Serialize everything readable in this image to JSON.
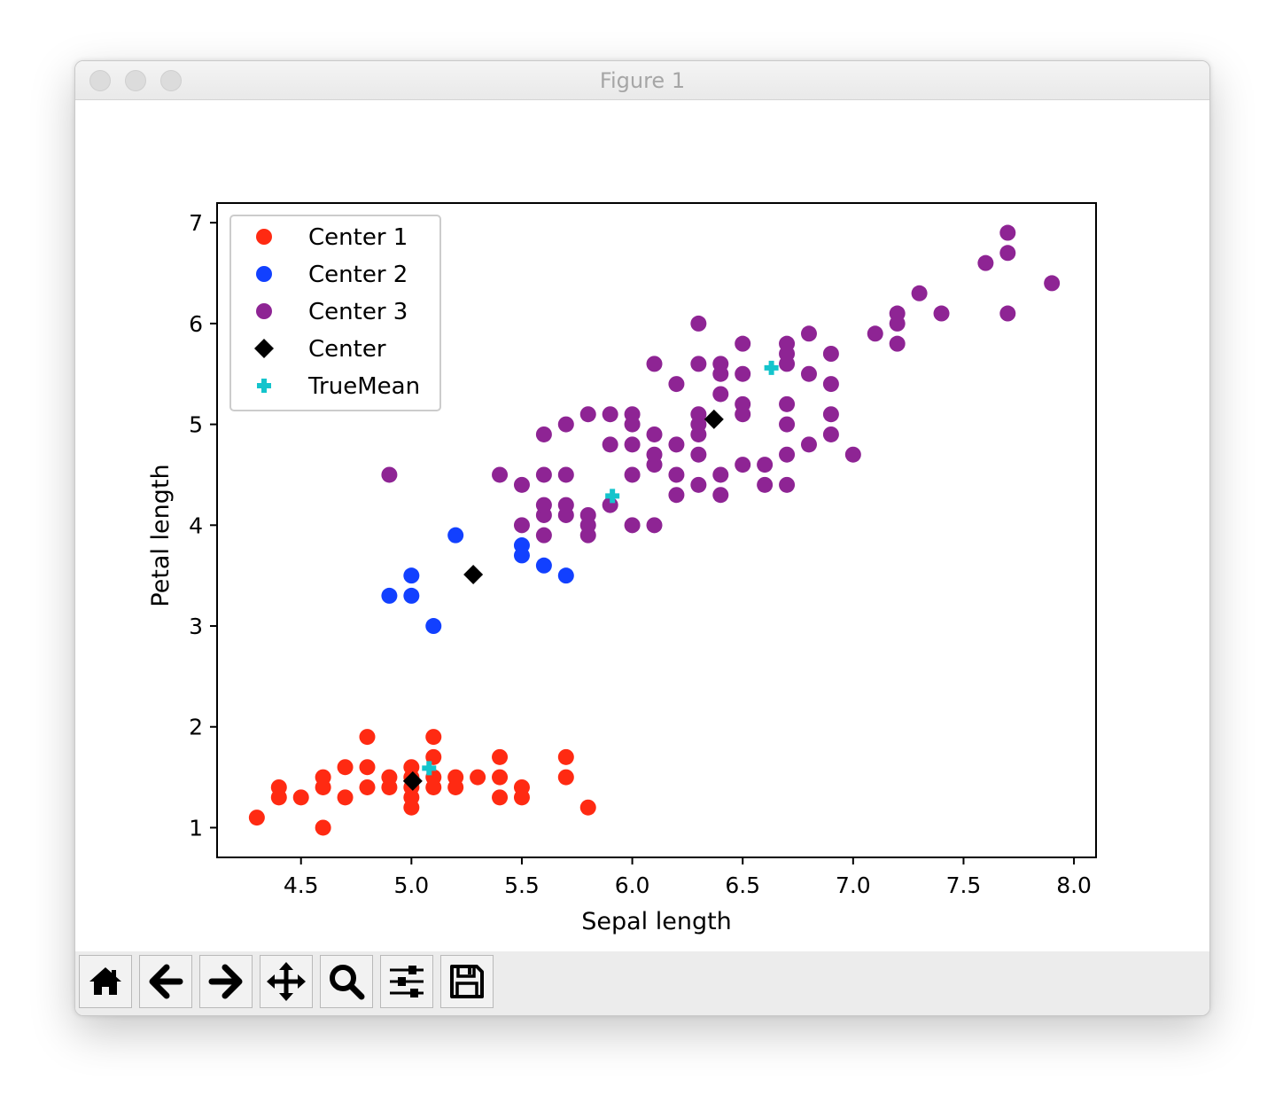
{
  "window": {
    "title": "Figure 1"
  },
  "toolbar": {
    "buttons": [
      {
        "name": "home",
        "icon": "home-icon"
      },
      {
        "name": "back",
        "icon": "arrow-left-icon"
      },
      {
        "name": "forward",
        "icon": "arrow-right-icon"
      },
      {
        "name": "pan",
        "icon": "move-icon"
      },
      {
        "name": "zoom",
        "icon": "magnifier-icon"
      },
      {
        "name": "configure-subplots",
        "icon": "sliders-icon"
      },
      {
        "name": "save",
        "icon": "floppy-disk-icon"
      }
    ]
  },
  "chart_data": {
    "type": "scatter",
    "title": "",
    "xlabel": "Sepal length",
    "ylabel": "Petal length",
    "xlim": [
      4.12,
      8.1
    ],
    "ylim": [
      0.705,
      7.195
    ],
    "xticks": [
      4.5,
      5.0,
      5.5,
      6.0,
      6.5,
      7.0,
      7.5,
      8.0
    ],
    "xtick_labels": [
      "4.5",
      "5.0",
      "5.5",
      "6.0",
      "6.5",
      "7.0",
      "7.5",
      "8.0"
    ],
    "yticks": [
      1,
      2,
      3,
      4,
      5,
      6,
      7
    ],
    "ytick_labels": [
      "1",
      "2",
      "3",
      "4",
      "5",
      "6",
      "7"
    ],
    "grid": false,
    "legend_position": "top-left",
    "series": [
      {
        "name": "Center 1",
        "marker": "circle",
        "color": "#ff2a12",
        "points": [
          [
            4.3,
            1.1
          ],
          [
            4.4,
            1.3
          ],
          [
            4.4,
            1.4
          ],
          [
            4.5,
            1.3
          ],
          [
            4.6,
            1.0
          ],
          [
            4.6,
            1.4
          ],
          [
            4.6,
            1.5
          ],
          [
            4.7,
            1.3
          ],
          [
            4.7,
            1.6
          ],
          [
            4.8,
            1.4
          ],
          [
            4.8,
            1.6
          ],
          [
            4.8,
            1.9
          ],
          [
            4.9,
            1.4
          ],
          [
            4.9,
            1.5
          ],
          [
            5.0,
            1.2
          ],
          [
            5.0,
            1.3
          ],
          [
            5.0,
            1.4
          ],
          [
            5.0,
            1.5
          ],
          [
            5.0,
            1.6
          ],
          [
            5.1,
            1.4
          ],
          [
            5.1,
            1.5
          ],
          [
            5.1,
            1.7
          ],
          [
            5.1,
            1.9
          ],
          [
            5.2,
            1.4
          ],
          [
            5.2,
            1.5
          ],
          [
            5.3,
            1.5
          ],
          [
            5.4,
            1.3
          ],
          [
            5.4,
            1.5
          ],
          [
            5.4,
            1.7
          ],
          [
            5.5,
            1.3
          ],
          [
            5.5,
            1.4
          ],
          [
            5.7,
            1.5
          ],
          [
            5.7,
            1.7
          ],
          [
            5.8,
            1.2
          ]
        ]
      },
      {
        "name": "Center 2",
        "marker": "circle",
        "color": "#1240ff",
        "points": [
          [
            4.9,
            3.3
          ],
          [
            5.0,
            3.3
          ],
          [
            5.0,
            3.5
          ],
          [
            5.1,
            3.0
          ],
          [
            5.2,
            3.9
          ],
          [
            5.5,
            3.7
          ],
          [
            5.5,
            3.8
          ],
          [
            5.6,
            3.6
          ],
          [
            5.7,
            3.5
          ]
        ]
      },
      {
        "name": "Center 3",
        "marker": "circle",
        "color": "#8e2494",
        "points": [
          [
            4.9,
            4.5
          ],
          [
            5.4,
            4.5
          ],
          [
            5.5,
            4.0
          ],
          [
            5.5,
            4.4
          ],
          [
            5.6,
            3.9
          ],
          [
            5.6,
            4.1
          ],
          [
            5.6,
            4.2
          ],
          [
            5.6,
            4.5
          ],
          [
            5.6,
            4.9
          ],
          [
            5.7,
            4.1
          ],
          [
            5.7,
            4.2
          ],
          [
            5.7,
            4.5
          ],
          [
            5.7,
            5.0
          ],
          [
            5.8,
            3.9
          ],
          [
            5.8,
            4.0
          ],
          [
            5.8,
            4.1
          ],
          [
            5.8,
            5.1
          ],
          [
            5.9,
            4.2
          ],
          [
            5.9,
            4.8
          ],
          [
            5.9,
            5.1
          ],
          [
            6.0,
            4.0
          ],
          [
            6.0,
            4.5
          ],
          [
            6.0,
            4.8
          ],
          [
            6.0,
            5.0
          ],
          [
            6.0,
            5.1
          ],
          [
            6.1,
            4.0
          ],
          [
            6.1,
            4.6
          ],
          [
            6.1,
            4.7
          ],
          [
            6.1,
            4.9
          ],
          [
            6.1,
            5.6
          ],
          [
            6.2,
            4.3
          ],
          [
            6.2,
            4.5
          ],
          [
            6.2,
            4.8
          ],
          [
            6.2,
            5.4
          ],
          [
            6.3,
            4.4
          ],
          [
            6.3,
            4.7
          ],
          [
            6.3,
            4.9
          ],
          [
            6.3,
            5.0
          ],
          [
            6.3,
            5.1
          ],
          [
            6.3,
            5.6
          ],
          [
            6.3,
            6.0
          ],
          [
            6.4,
            4.3
          ],
          [
            6.4,
            4.5
          ],
          [
            6.4,
            5.3
          ],
          [
            6.4,
            5.5
          ],
          [
            6.4,
            5.6
          ],
          [
            6.5,
            4.6
          ],
          [
            6.5,
            5.1
          ],
          [
            6.5,
            5.2
          ],
          [
            6.5,
            5.5
          ],
          [
            6.5,
            5.8
          ],
          [
            6.6,
            4.4
          ],
          [
            6.6,
            4.6
          ],
          [
            6.7,
            4.4
          ],
          [
            6.7,
            4.7
          ],
          [
            6.7,
            5.0
          ],
          [
            6.7,
            5.2
          ],
          [
            6.7,
            5.6
          ],
          [
            6.7,
            5.7
          ],
          [
            6.7,
            5.8
          ],
          [
            6.8,
            4.8
          ],
          [
            6.8,
            5.5
          ],
          [
            6.8,
            5.9
          ],
          [
            6.9,
            4.9
          ],
          [
            6.9,
            5.1
          ],
          [
            6.9,
            5.4
          ],
          [
            6.9,
            5.7
          ],
          [
            7.0,
            4.7
          ],
          [
            7.1,
            5.9
          ],
          [
            7.2,
            5.8
          ],
          [
            7.2,
            6.0
          ],
          [
            7.2,
            6.1
          ],
          [
            7.3,
            6.3
          ],
          [
            7.4,
            6.1
          ],
          [
            7.6,
            6.6
          ],
          [
            7.7,
            6.1
          ],
          [
            7.7,
            6.7
          ],
          [
            7.7,
            6.9
          ],
          [
            7.9,
            6.4
          ]
        ]
      },
      {
        "name": "Center",
        "marker": "diamond",
        "color": "#000000",
        "points": [
          [
            5.006,
            1.462
          ],
          [
            5.28,
            3.51
          ],
          [
            6.37,
            5.05
          ]
        ]
      },
      {
        "name": "TrueMean",
        "marker": "plus",
        "color": "#14c4cc",
        "points": [
          [
            5.08,
            1.59
          ],
          [
            5.91,
            4.29
          ],
          [
            6.63,
            5.56
          ]
        ]
      }
    ]
  }
}
